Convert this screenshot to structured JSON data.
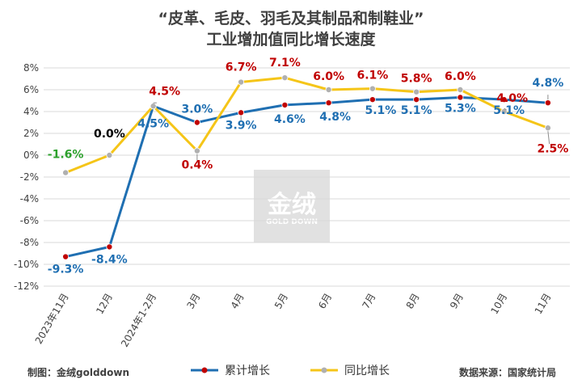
{
  "chart_data": {
    "type": "line",
    "title_line1": "“皮革、毛皮、羽毛及其制品和制鞋业”",
    "title_line2": "工业增加值同比增长速度",
    "categories": [
      "2023年11月",
      "12月",
      "2024年1-2月",
      "3月",
      "4月",
      "5月",
      "6月",
      "7月",
      "8月",
      "9月",
      "10月",
      "11月"
    ],
    "y_ticks": [
      "8%",
      "6%",
      "4%",
      "2%",
      "0%",
      "-2%",
      "-4%",
      "-6%",
      "-8%",
      "-10%",
      "-12%"
    ],
    "ylim": [
      -12,
      8
    ],
    "grid": true,
    "legend_position": "bottom",
    "series": [
      {
        "name": "累计增长",
        "color": "#1f6fb2",
        "marker_color": "#c00000",
        "values": [
          -9.3,
          -8.4,
          4.5,
          3.0,
          3.9,
          4.6,
          4.8,
          5.1,
          5.1,
          5.3,
          5.1,
          4.8
        ],
        "labels": [
          "-9.3%",
          "-8.4%",
          "4.5%",
          "3.0%",
          "3.9%",
          "4.6%",
          "4.8%",
          "5.1%",
          "5.1%",
          "5.3%",
          "5.1%",
          "4.8%"
        ]
      },
      {
        "name": "同比增长",
        "color": "#f5c518",
        "marker_color": "#b0b0b0",
        "values": [
          -1.6,
          0.0,
          4.5,
          0.4,
          6.7,
          7.1,
          6.0,
          6.1,
          5.8,
          6.0,
          4.0,
          2.5
        ],
        "labels": [
          "-1.6%",
          "0.0%",
          "4.5%",
          "0.4%",
          "6.7%",
          "7.1%",
          "6.0%",
          "6.1%",
          "5.8%",
          "6.0%",
          "4.0%",
          "2.5%"
        ],
        "label_colors": [
          "#2ca02c",
          "#000000",
          "#c00000",
          "#c00000",
          "#c00000",
          "#c00000",
          "#c00000",
          "#c00000",
          "#c00000",
          "#c00000",
          "#c00000",
          "#c00000"
        ]
      }
    ]
  },
  "footer": {
    "credit": "制图：金绒golddown",
    "source": "数据来源：国家统计局"
  },
  "watermark": {
    "text": "金绒",
    "sub": "GOLD DOWN"
  }
}
